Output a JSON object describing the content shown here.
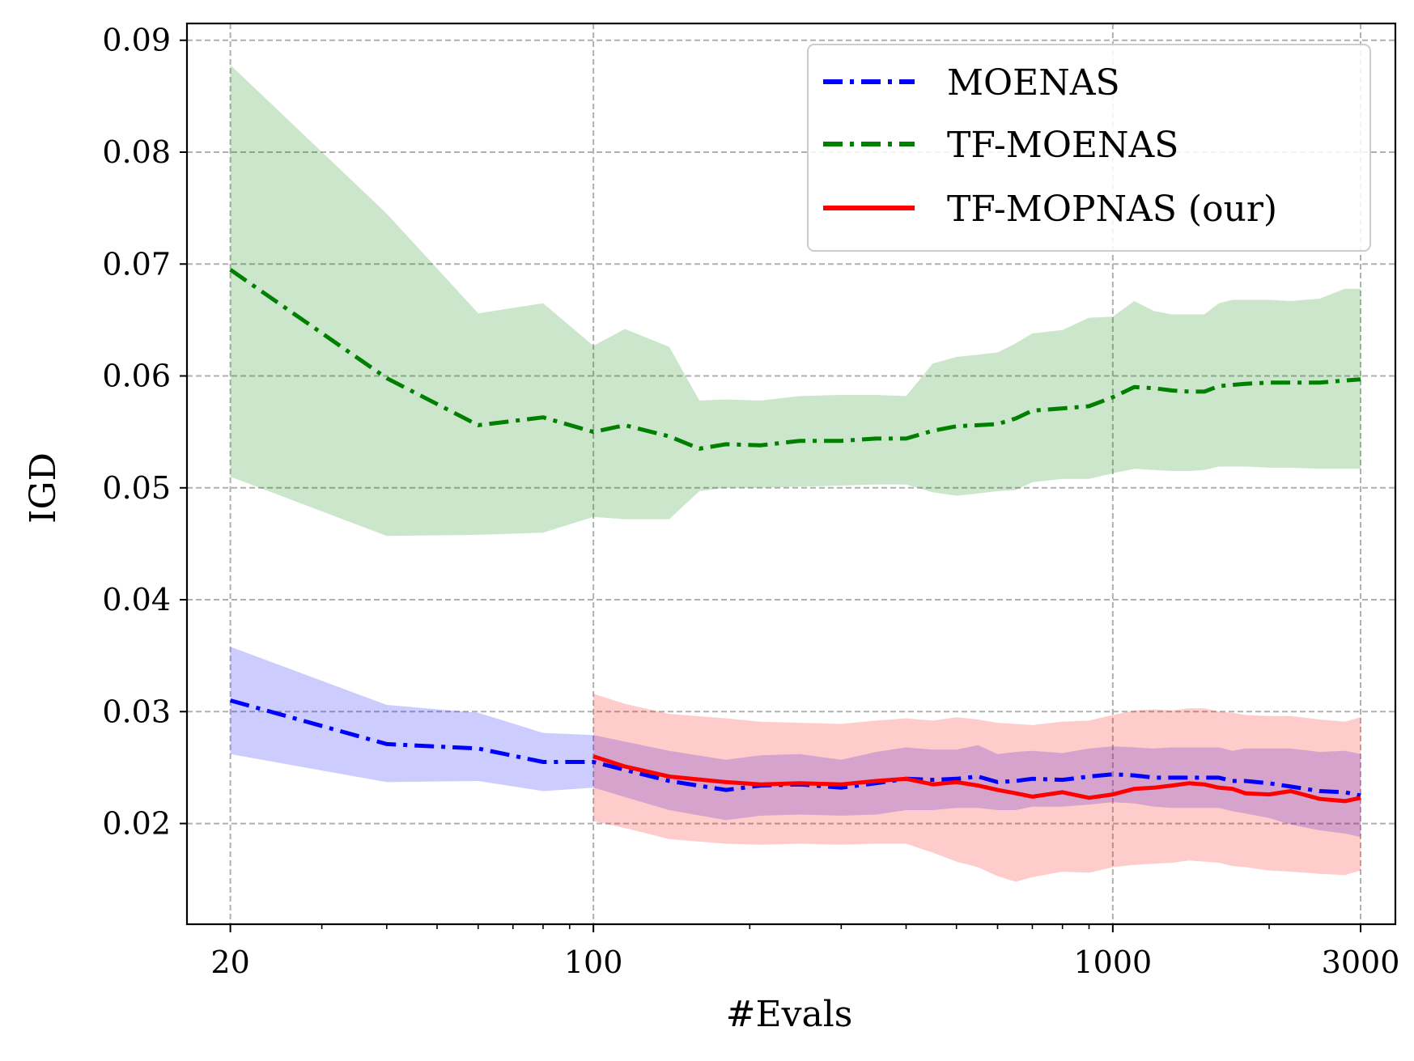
{
  "chart_data": {
    "type": "line",
    "title": "",
    "xlabel": "#Evals",
    "ylabel": "IGD",
    "xscale": "log",
    "xlim": [
      16.5,
      3500
    ],
    "ylim": [
      0.011,
      0.0915
    ],
    "xticks": [
      20,
      100,
      1000,
      3000
    ],
    "xtick_labels": [
      "20",
      "100",
      "1000",
      "3000"
    ],
    "yticks": [
      0.02,
      0.03,
      0.04,
      0.05,
      0.06,
      0.07,
      0.08,
      0.09
    ],
    "ytick_labels": [
      "0.02",
      "0.03",
      "0.04",
      "0.05",
      "0.06",
      "0.07",
      "0.08",
      "0.09"
    ],
    "grid": true,
    "legend_position": "top-right",
    "series": [
      {
        "name": "MOENAS",
        "color": "#0000ff",
        "band_color": "#0000ff",
        "linestyle": "dashdot",
        "x": [
          20,
          40,
          60,
          80,
          100,
          140,
          180,
          210,
          250,
          300,
          350,
          400,
          450,
          500,
          550,
          600,
          650,
          700,
          800,
          900,
          1000,
          1100,
          1200,
          1300,
          1400,
          1500,
          1600,
          1700,
          1800,
          2000,
          2200,
          2500,
          2800,
          3000
        ],
        "y": [
          0.031,
          0.0271,
          0.0267,
          0.0255,
          0.0255,
          0.0238,
          0.023,
          0.0234,
          0.0235,
          0.0232,
          0.0236,
          0.024,
          0.0239,
          0.024,
          0.0242,
          0.0237,
          0.0238,
          0.024,
          0.0239,
          0.0242,
          0.0244,
          0.0243,
          0.0241,
          0.0241,
          0.0241,
          0.0241,
          0.0241,
          0.0238,
          0.0238,
          0.0236,
          0.0233,
          0.0229,
          0.0228,
          0.0225
        ],
        "lower": [
          0.0262,
          0.0237,
          0.0238,
          0.0229,
          0.0232,
          0.0212,
          0.0203,
          0.0207,
          0.0208,
          0.0207,
          0.0208,
          0.0212,
          0.0212,
          0.0214,
          0.0214,
          0.0212,
          0.0212,
          0.0215,
          0.0215,
          0.0217,
          0.0219,
          0.0218,
          0.0215,
          0.0214,
          0.0214,
          0.0214,
          0.0214,
          0.0211,
          0.0209,
          0.0205,
          0.0199,
          0.0194,
          0.0191,
          0.0188
        ],
        "upper": [
          0.0358,
          0.0306,
          0.0299,
          0.0281,
          0.0279,
          0.0265,
          0.0257,
          0.0261,
          0.0262,
          0.0257,
          0.0264,
          0.0268,
          0.0266,
          0.0266,
          0.027,
          0.0262,
          0.0264,
          0.0265,
          0.0263,
          0.0267,
          0.0269,
          0.0268,
          0.0267,
          0.0268,
          0.0268,
          0.0268,
          0.0268,
          0.0265,
          0.0267,
          0.0267,
          0.0267,
          0.0264,
          0.0265,
          0.0262
        ]
      },
      {
        "name": "TF-MOENAS",
        "color": "#008000",
        "band_color": "#008000",
        "linestyle": "dashdot",
        "x": [
          20,
          40,
          60,
          80,
          100,
          115,
          140,
          160,
          180,
          210,
          250,
          300,
          350,
          400,
          450,
          500,
          550,
          600,
          650,
          700,
          800,
          900,
          1000,
          1100,
          1200,
          1300,
          1400,
          1500,
          1600,
          1700,
          1800,
          2000,
          2200,
          2500,
          2800,
          3000
        ],
        "y": [
          0.0695,
          0.0598,
          0.0556,
          0.0563,
          0.055,
          0.0556,
          0.0546,
          0.0535,
          0.0539,
          0.0538,
          0.0542,
          0.0542,
          0.0544,
          0.0544,
          0.0551,
          0.0555,
          0.0556,
          0.0557,
          0.0562,
          0.0569,
          0.0571,
          0.0573,
          0.0581,
          0.059,
          0.0589,
          0.0587,
          0.0586,
          0.0586,
          0.0591,
          0.0592,
          0.0593,
          0.0594,
          0.0594,
          0.0594,
          0.0596,
          0.0597
        ],
        "lower": [
          0.051,
          0.0457,
          0.0458,
          0.046,
          0.0474,
          0.0472,
          0.0472,
          0.0497,
          0.05,
          0.05,
          0.0501,
          0.0502,
          0.0503,
          0.0503,
          0.0496,
          0.0493,
          0.0495,
          0.0497,
          0.0498,
          0.0505,
          0.0508,
          0.0508,
          0.0513,
          0.0517,
          0.0516,
          0.0515,
          0.0515,
          0.0516,
          0.0519,
          0.0519,
          0.0519,
          0.0518,
          0.0518,
          0.0517,
          0.0517,
          0.0517
        ],
        "upper": [
          0.0878,
          0.0745,
          0.0656,
          0.0665,
          0.0627,
          0.0642,
          0.0626,
          0.0578,
          0.0579,
          0.0578,
          0.0582,
          0.0583,
          0.0583,
          0.0582,
          0.0611,
          0.0617,
          0.0619,
          0.0621,
          0.0629,
          0.0638,
          0.0641,
          0.0652,
          0.0653,
          0.0667,
          0.0658,
          0.0655,
          0.0655,
          0.0655,
          0.0665,
          0.0668,
          0.0668,
          0.0668,
          0.0667,
          0.0669,
          0.0678,
          0.0678
        ]
      },
      {
        "name": "TF-MOPNAS (our)",
        "color": "#ff0000",
        "band_color": "#ff0000",
        "linestyle": "solid",
        "x": [
          100,
          115,
          140,
          180,
          210,
          250,
          300,
          350,
          400,
          450,
          500,
          550,
          600,
          650,
          700,
          800,
          900,
          1000,
          1100,
          1200,
          1300,
          1400,
          1500,
          1600,
          1700,
          1800,
          2000,
          2200,
          2500,
          2800,
          3000
        ],
        "y": [
          0.026,
          0.0251,
          0.0242,
          0.0237,
          0.0235,
          0.0236,
          0.0235,
          0.0238,
          0.024,
          0.0235,
          0.0237,
          0.0234,
          0.023,
          0.0227,
          0.0224,
          0.0228,
          0.0223,
          0.0226,
          0.0231,
          0.0232,
          0.0234,
          0.0236,
          0.0235,
          0.0232,
          0.0231,
          0.0227,
          0.0226,
          0.0229,
          0.0222,
          0.022,
          0.0223
        ],
        "lower": [
          0.0202,
          0.0196,
          0.0186,
          0.0182,
          0.0181,
          0.0182,
          0.0181,
          0.0182,
          0.0182,
          0.0174,
          0.0166,
          0.0161,
          0.0153,
          0.0148,
          0.0152,
          0.0157,
          0.0156,
          0.0161,
          0.0163,
          0.0164,
          0.0165,
          0.0167,
          0.0166,
          0.0165,
          0.0162,
          0.0161,
          0.0158,
          0.0157,
          0.0155,
          0.0154,
          0.0158
        ],
        "upper": [
          0.0316,
          0.0307,
          0.0298,
          0.0294,
          0.0291,
          0.029,
          0.0289,
          0.0292,
          0.0294,
          0.0292,
          0.0295,
          0.0293,
          0.029,
          0.0289,
          0.0288,
          0.0291,
          0.0292,
          0.0297,
          0.0301,
          0.0302,
          0.0301,
          0.0303,
          0.0303,
          0.03,
          0.0299,
          0.0297,
          0.0296,
          0.0296,
          0.0293,
          0.0291,
          0.0295
        ]
      }
    ]
  }
}
